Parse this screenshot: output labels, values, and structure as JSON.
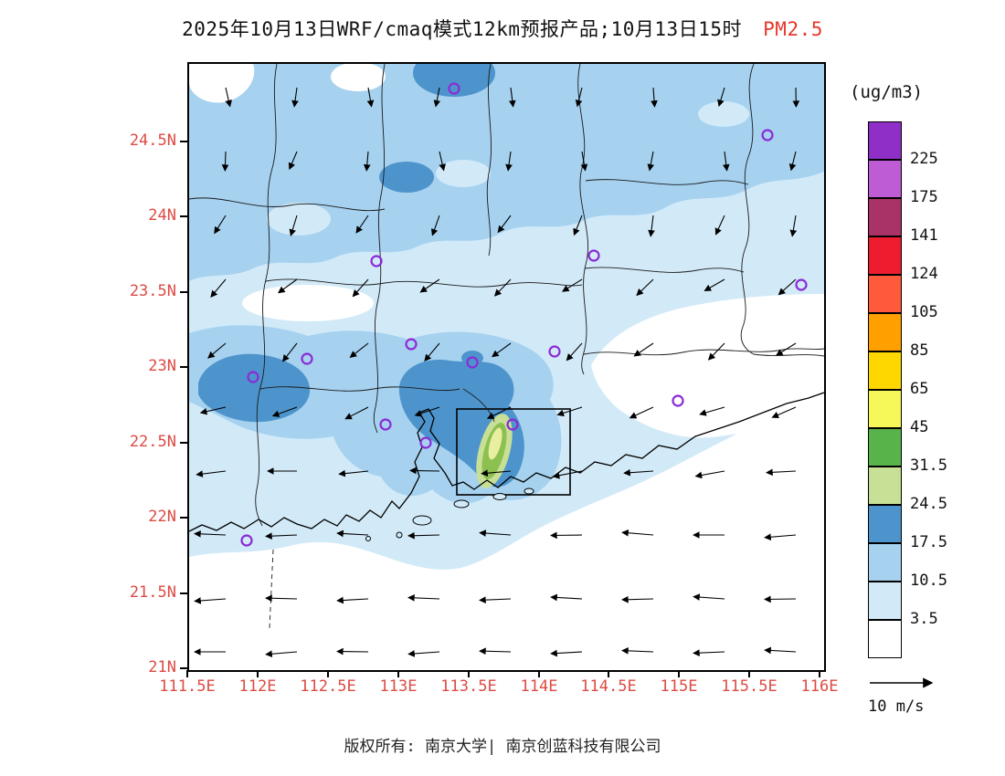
{
  "title": {
    "main": "2025年10月13日WRF/cmaq模式12km预报产品;10月13日15时",
    "pollutant": "PM2.5"
  },
  "colorbar": {
    "unit": "(ug/m3)",
    "ticks": [
      "225",
      "175",
      "141",
      "124",
      "105",
      "85",
      "65",
      "45",
      "31.5",
      "24.5",
      "17.5",
      "10.5",
      "3.5"
    ],
    "segment_colors_top_to_bottom": [
      "#8F2FC7",
      "#BE5CD6",
      "#A93266",
      "#EE1C2F",
      "#FF5A3C",
      "#FFA000",
      "#FFD700",
      "#F6F85A",
      "#58B44A",
      "#C8E096",
      "#4E94CC",
      "#A6D2F0",
      "#D2EAF8",
      "#FFFFFF"
    ]
  },
  "axes": {
    "lat_ticks": [
      "24.5N",
      "24N",
      "23.5N",
      "23N",
      "22.5N",
      "22N",
      "21.5N",
      "21N"
    ],
    "lon_ticks": [
      "111.5E",
      "112E",
      "112.5E",
      "113E",
      "113.5E",
      "114E",
      "114.5E",
      "115E",
      "115.5E",
      "116E"
    ],
    "label_color": "#DD4B44"
  },
  "wind_legend": {
    "label": "10 m/s"
  },
  "footer": {
    "text": "版权所有: 南京大学| 南京创蓝科技有限公司"
  },
  "accent_colors": {
    "axis_label": "#DD4B44",
    "title_pollutant": "#E8372B",
    "station_marker": "#8B2BD6"
  },
  "chart_data": {
    "type": "heatmap",
    "title": "2025年10月13日WRF/cmaq模式12km预报产品;10月13日15时 PM2.5",
    "variable": "PM2.5 surface concentration forecast (WRF/CMAQ 12km)",
    "unit": "ug/m3",
    "x_axis": {
      "label": "longitude",
      "ticks": [
        "111.5E",
        "112E",
        "112.5E",
        "113E",
        "113.5E",
        "114E",
        "114.5E",
        "115E",
        "115.5E",
        "116E"
      ],
      "range": [
        "111.5E",
        "116E"
      ]
    },
    "y_axis": {
      "label": "latitude",
      "ticks": [
        "21N",
        "21.5N",
        "22N",
        "22.5N",
        "23N",
        "23.5N",
        "24N",
        "24.5N"
      ],
      "range": [
        "21N",
        "25N"
      ]
    },
    "contour_levels": [
      3.5,
      10.5,
      17.5,
      24.5,
      31.5,
      45,
      65,
      85,
      105,
      124,
      141,
      175,
      225
    ],
    "level_colors_low_to_high": [
      "#FFFFFF",
      "#D2EAF8",
      "#A6D2F0",
      "#4E94CC",
      "#C8E096",
      "#58B44A",
      "#F6F85A",
      "#FFD700",
      "#FFA000",
      "#FF5A3C",
      "#EE1C2F",
      "#A93266",
      "#BE5CD6",
      "#8F2FC7"
    ],
    "field_summary": [
      {
        "region": "northern half of domain (23N-25N)",
        "pm25": "3.5-17.5"
      },
      {
        "region": "western area near 112E, 22.7-23.1N",
        "pm25": "10.5-24.5"
      },
      {
        "region": "Pearl River Delta band 113.2-113.9E, 22.6-23.1N",
        "pm25": "17.5-24.5"
      },
      {
        "region": "delta core near 113.7E, 22.2-22.5N",
        "pm25": "24.5-45 (pale green/yellow maximum)"
      },
      {
        "region": "southeast inland and offshore waters south of coast",
        "pm25": "<3.5"
      }
    ],
    "nested_domain_box": {
      "approx_extent": "113.4-114.2E, 22.2-22.8N"
    },
    "wind_vectors": {
      "reference_speed": "10 m/s",
      "pattern": "northerly over northern inland turning to easterly over the coastal sea"
    },
    "station_markers": {
      "shape": "open purple circles",
      "count": 15
    },
    "legend_position": "right colorbar",
    "grid": "off"
  }
}
